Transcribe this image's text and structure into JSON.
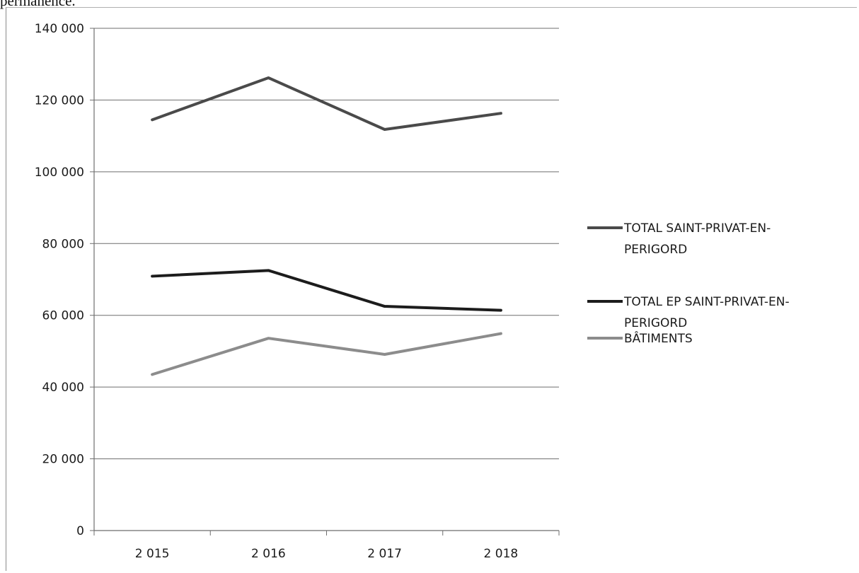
{
  "page_fragment": "permanence.",
  "chart_data": {
    "type": "line",
    "x": [
      "2 015",
      "2 016",
      "2 017",
      "2 018"
    ],
    "ylim": [
      0,
      140000
    ],
    "yticks": [
      0,
      20000,
      40000,
      60000,
      80000,
      100000,
      120000,
      140000
    ],
    "ytick_labels": [
      "0",
      "20 000",
      "40 000",
      "60 000",
      "80 000",
      "100 000",
      "120 000",
      "140 000"
    ],
    "grid": true,
    "legend_position": "right",
    "series": [
      {
        "name_lines": [
          "TOTAL SAINT-PRIVAT-EN-",
          "PERIGORD"
        ],
        "color": "#4a4a4a",
        "values": [
          114500,
          126200,
          111800,
          116300
        ]
      },
      {
        "name_lines": [
          "TOTAL EP SAINT-PRIVAT-EN-",
          "PERIGORD"
        ],
        "color": "#1c1c1c",
        "values": [
          70900,
          72500,
          62500,
          61400
        ]
      },
      {
        "name_lines": [
          "BÂTIMENTS"
        ],
        "color": "#8c8c8c",
        "values": [
          43500,
          53600,
          49100,
          54900
        ]
      }
    ]
  }
}
